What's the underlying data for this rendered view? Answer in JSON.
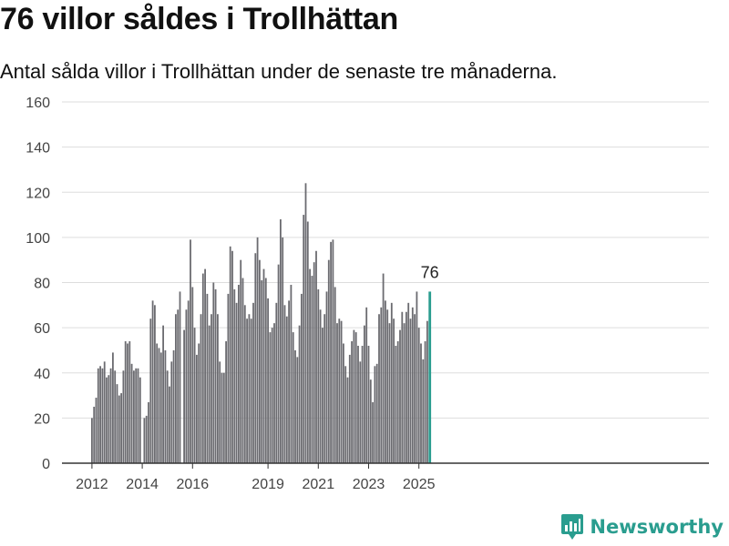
{
  "header": {
    "title": "76 villor såldes i Trollhättan",
    "subtitle": "Antal sålda villor i Trollhättan under de senaste tre månaderna."
  },
  "brand": {
    "name": "Newsworthy"
  },
  "colors": {
    "bar": "#6b6b70",
    "highlight": "#2a9d8f",
    "grid": "#dddddd",
    "axis": "#333333",
    "text": "#444444",
    "brand": "#2a9d8f"
  },
  "chart_data": {
    "type": "bar",
    "title": "76 villor såldes i Trollhättan",
    "subtitle": "Antal sålda villor i Trollhättan under de senaste tre månaderna.",
    "xlabel": "",
    "ylabel": "",
    "ylim": [
      0,
      160
    ],
    "yticks": [
      "0",
      "20",
      "40",
      "60",
      "80",
      "100",
      "120",
      "140",
      "160"
    ],
    "xticks": [
      {
        "label": "2012",
        "index": 0
      },
      {
        "label": "2014",
        "index": 24
      },
      {
        "label": "2016",
        "index": 48
      },
      {
        "label": "2019",
        "index": 84
      },
      {
        "label": "2021",
        "index": 108
      },
      {
        "label": "2023",
        "index": 132
      },
      {
        "label": "2025",
        "index": 156
      }
    ],
    "grid": true,
    "start_period": "2012-01",
    "values": [
      20,
      25,
      29,
      42,
      43,
      42,
      45,
      38,
      39,
      42,
      49,
      41,
      35,
      30,
      31,
      41,
      54,
      53,
      54,
      44,
      41,
      42,
      42,
      38,
      0,
      20,
      21,
      27,
      64,
      72,
      70,
      53,
      51,
      49,
      61,
      50,
      41,
      34,
      45,
      50,
      66,
      68,
      76,
      0,
      59,
      68,
      72,
      99,
      78,
      60,
      48,
      53,
      66,
      84,
      86,
      75,
      61,
      66,
      80,
      77,
      66,
      45,
      40,
      40,
      54,
      75,
      96,
      94,
      77,
      71,
      79,
      90,
      82,
      70,
      64,
      66,
      64,
      71,
      93,
      100,
      90,
      81,
      86,
      82,
      73,
      58,
      60,
      62,
      71,
      88,
      108,
      100,
      70,
      65,
      72,
      79,
      58,
      50,
      47,
      61,
      75,
      110,
      124,
      107,
      86,
      83,
      89,
      94,
      77,
      68,
      60,
      66,
      76,
      90,
      98,
      99,
      78,
      62,
      64,
      63,
      53,
      43,
      38,
      48,
      54,
      59,
      58,
      52,
      45,
      52,
      61,
      69,
      52,
      37,
      27,
      43,
      44,
      66,
      69,
      84,
      72,
      68,
      62,
      71,
      64,
      52,
      54,
      59,
      67,
      62,
      67,
      71,
      64,
      69,
      66,
      76,
      60,
      53,
      46,
      54,
      63,
      76
    ],
    "highlight_last": true,
    "annotation": "76"
  }
}
